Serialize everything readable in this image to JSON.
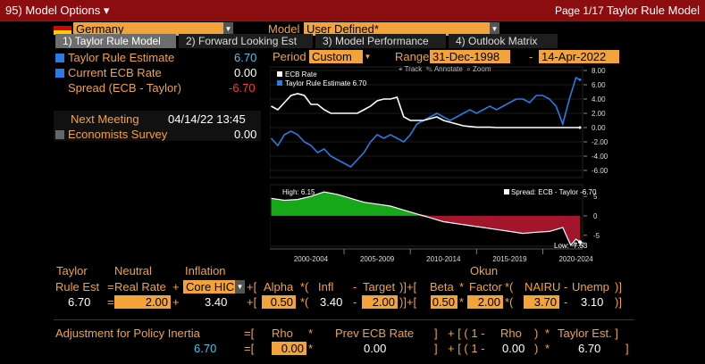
{
  "topbar": {
    "menu_label": "95) Model Options",
    "menu_arrow": "▾",
    "page": "Page 1/17",
    "title": "Taylor Rule Model"
  },
  "country": {
    "value": "Germany"
  },
  "model": {
    "label": "Model",
    "value": "User Defined*"
  },
  "tabs": [
    {
      "label": "1) Taylor Rule Model"
    },
    {
      "label": "2) Forward Looking Est"
    },
    {
      "label": "3) Model Performance"
    },
    {
      "label": "4) Outlook Matrix"
    }
  ],
  "indicators": {
    "taylor": {
      "label": "Taylor Rule Estimate",
      "value": "6.70"
    },
    "ecb": {
      "label": "Current ECB Rate",
      "value": "0.00"
    },
    "spread": {
      "label": "Spread (ECB - Taylor)",
      "value": "-6.70"
    },
    "next_meeting": {
      "label": "Next Meeting",
      "value": "04/14/22 13:45"
    },
    "economists": {
      "label": "Economists Survey",
      "value": "0.00"
    }
  },
  "period": {
    "label": "Period",
    "value": "Custom"
  },
  "range": {
    "label": "Range",
    "start": "31-Dec-1998",
    "dash": "-",
    "end": "14-Apr-2022"
  },
  "chart_tools": {
    "track": "Track",
    "annotate": "Annotate",
    "zoom": "Zoom"
  },
  "chart_data": [
    {
      "type": "line",
      "legend": [
        {
          "name": "ECB Rate",
          "color": "#ffffff"
        },
        {
          "name": "Taylor Rule Estimate 6.70",
          "color": "#2a7be4"
        }
      ],
      "ylim": [
        -7,
        8.5
      ],
      "yticks": [
        "8.00",
        "6.00",
        "4.00",
        "2.00",
        "0.00",
        "-2.00",
        "-4.00",
        "-6.00"
      ],
      "ytick_values": [
        8,
        6,
        4,
        2,
        0,
        -2,
        -4,
        -6
      ],
      "x": [
        1999,
        1999.5,
        2000,
        2000.5,
        2001,
        2001.5,
        2002,
        2002.5,
        2003,
        2003.5,
        2004,
        2004.5,
        2005,
        2005.5,
        2006,
        2006.5,
        2007,
        2007.5,
        2008,
        2008.5,
        2009,
        2009.5,
        2010,
        2010.5,
        2011,
        2011.5,
        2012,
        2012.5,
        2013,
        2013.5,
        2014,
        2014.5,
        2015,
        2015.5,
        2016,
        2016.5,
        2017,
        2017.5,
        2018,
        2018.5,
        2019,
        2019.5,
        2020,
        2020.5,
        2021,
        2021.5,
        2022,
        2022.3
      ],
      "series": [
        {
          "name": "ECB Rate",
          "color": "#ffffff",
          "values": [
            3.0,
            2.5,
            3.5,
            4.5,
            4.75,
            4.5,
            3.25,
            3.25,
            2.5,
            2.0,
            2.0,
            2.0,
            2.0,
            2.0,
            2.5,
            3.0,
            3.75,
            4.0,
            4.0,
            4.25,
            1.5,
            1.0,
            1.0,
            1.0,
            1.25,
            1.5,
            1.0,
            0.75,
            0.5,
            0.25,
            0.15,
            0.05,
            0.05,
            0.05,
            0.0,
            0.0,
            0.0,
            0.0,
            0.0,
            0.0,
            0.0,
            0.0,
            0.0,
            0.0,
            0.0,
            0.0,
            0.0,
            0.0
          ]
        },
        {
          "name": "Taylor Rule Estimate",
          "color": "#2a7be4",
          "values": [
            -1.5,
            -2.5,
            -1.0,
            -0.5,
            -1.0,
            -2.0,
            -2.5,
            -3.5,
            -3.0,
            -4.0,
            -4.5,
            -5.0,
            -5.5,
            -4.5,
            -3.5,
            -2.0,
            -1.0,
            -1.5,
            -1.0,
            -1.5,
            -2.0,
            -1.0,
            0.5,
            1.0,
            1.5,
            2.0,
            1.5,
            1.0,
            1.5,
            2.0,
            2.5,
            2.0,
            2.5,
            3.0,
            2.5,
            3.0,
            3.5,
            4.0,
            4.0,
            3.5,
            4.5,
            4.5,
            4.0,
            3.0,
            0.5,
            4.0,
            7.0,
            6.7
          ]
        }
      ]
    },
    {
      "type": "area",
      "legend": [
        {
          "name": "Spread: ECB - Taylor -6.70",
          "color": "#ffffff"
        }
      ],
      "annotations": {
        "high": "High: 6.15",
        "low": "Low: -7.53",
        "last": "-6.70"
      },
      "ylim": [
        -7.8,
        8
      ],
      "yticks": [
        "5",
        "0",
        "-5"
      ],
      "ytick_values": [
        5,
        0,
        -5
      ],
      "xtick_labels": [
        "2000-2004",
        "2005-2009",
        "2010-2014",
        "2015-2019",
        "2020-2024"
      ],
      "x": [
        1999,
        2000,
        2001,
        2002,
        2003,
        2004,
        2005,
        2006,
        2007,
        2008,
        2009,
        2010,
        2011,
        2012,
        2013,
        2014,
        2015,
        2016,
        2017,
        2018,
        2019,
        2020,
        2021,
        2021.6,
        2022,
        2022.3
      ],
      "values": [
        4.5,
        4.0,
        4.2,
        5.0,
        6.15,
        5.5,
        4.5,
        3.5,
        3.0,
        2.5,
        1.5,
        0.5,
        -0.5,
        -1.5,
        -2.0,
        -2.5,
        -3.0,
        -3.5,
        -4.0,
        -4.5,
        -4.2,
        -4.0,
        -3.0,
        -7.53,
        -6.0,
        -6.7
      ]
    }
  ],
  "formula": {
    "headers": {
      "taylor": "Taylor",
      "neutral": "Neutral",
      "inflation": "Inflation",
      "okun": "Okun"
    },
    "row1": {
      "rule_est": "Rule Est",
      "eq": "=",
      "real_rate": "Real Rate",
      "plus1": "+",
      "core": "Core HIC",
      "plus2": "+[",
      "alpha": "Alpha",
      "mul1": "*(",
      "infl": "Infl",
      "minus1": "-",
      "target": "Target",
      "close1": ")]+[",
      "beta": "Beta",
      "mul2": "*",
      "factor": "Factor",
      "mul3": "*(",
      "nairu": "NAIRU",
      "minus2": "-",
      "unemp": "Unemp",
      "close2": ")]"
    },
    "row2": {
      "rule_value": "6.70",
      "eq": "=",
      "real_rate": "2.00",
      "plus1": "+",
      "core": "3.40",
      "plus2": "+[",
      "alpha": "0.50",
      "mul1": "*(",
      "infl": "3.40",
      "minus1": "-",
      "target": "2.00",
      "close1": ")]+[",
      "beta": "0.50",
      "mul2": "*",
      "factor": "2.00",
      "mul3": "*(",
      "nairu": "3.70",
      "minus2": "-",
      "unemp": "3.10",
      "close2": ")]"
    }
  },
  "inertia": {
    "title": "Adjustment for Policy Inertia",
    "eq1": "=[",
    "rho": "Rho",
    "mul1": "*",
    "prev": "Prev ECB Rate",
    "br1": "]",
    "plus": "+ [ ( 1 -",
    "rho2": "Rho",
    "close": ")",
    "mul2": "*",
    "taylor_est": "Taylor Est. ]",
    "value": "6.70",
    "eq2": "=[",
    "rho_value": "0.00",
    "mul3": "*",
    "prev_value": "0.00",
    "br2": "]",
    "plus2": "+ [ ( 1 -",
    "rho2_value": "0.00",
    "close2": ")",
    "mul4": "*",
    "taylor_value": "6.70",
    "end": "]"
  }
}
